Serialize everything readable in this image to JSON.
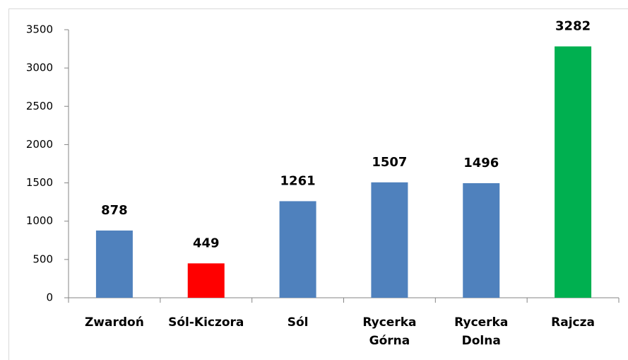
{
  "chart_data": {
    "type": "bar",
    "categories": [
      "Zwardoń",
      "Sól-Kiczora",
      "Sól",
      "Rycerka Górna",
      "Rycerka Dolna",
      "Rajcza"
    ],
    "values": [
      878,
      449,
      1261,
      1507,
      1496,
      3282
    ],
    "colors": [
      "#4f81bd",
      "#ff0000",
      "#4f81bd",
      "#4f81bd",
      "#4f81bd",
      "#00b050"
    ],
    "ylim": [
      0,
      3500
    ],
    "yticks": [
      0,
      500,
      1000,
      1500,
      2000,
      2500,
      3000,
      3500
    ],
    "grid": false
  }
}
